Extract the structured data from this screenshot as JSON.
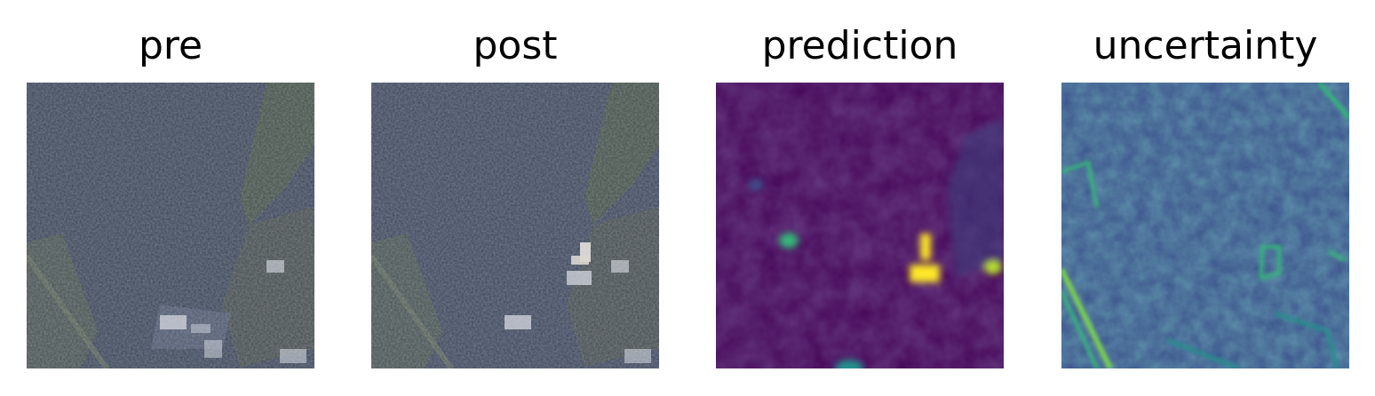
{
  "figure": {
    "panels": [
      {
        "title": "pre",
        "image_kind": "satellite-rgb"
      },
      {
        "title": "post",
        "image_kind": "satellite-rgb"
      },
      {
        "title": "prediction",
        "image_kind": "viridis-heatmap"
      },
      {
        "title": "uncertainty",
        "image_kind": "viridis-heatmap"
      }
    ],
    "colormap": "viridis",
    "colors": {
      "satellite_base": "#3b4558",
      "viridis_low": "#440154",
      "viridis_mid": "#21918c",
      "viridis_high": "#fde725"
    }
  }
}
